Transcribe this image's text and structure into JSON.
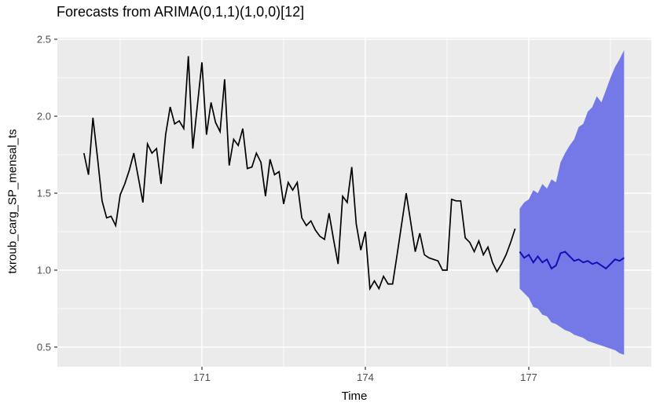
{
  "title": "Forecasts from ARIMA(0,1,1)(1,0,0)[12]",
  "axes": {
    "x": {
      "label": "Time",
      "tick_labels": [
        "171",
        "174",
        "177"
      ],
      "tick_values": [
        171,
        174,
        177
      ],
      "minor_tick_values": [
        169.5,
        172.5,
        175.5,
        178.5
      ],
      "range": [
        168.35,
        179.25
      ]
    },
    "y": {
      "label": "txroub_carg_SP_mensal_ts",
      "tick_labels": [
        "2.5",
        "2.0",
        "1.5",
        "1.0",
        "0.5"
      ],
      "tick_values": [
        2.5,
        2.0,
        1.5,
        1.0,
        0.5
      ],
      "minor_tick_values": [
        2.25,
        1.75,
        1.25,
        0.75
      ],
      "range": [
        0.37,
        2.51
      ]
    }
  },
  "colors": {
    "panel_background": "#ebebeb",
    "major_gridline": "#ffffff",
    "minor_gridline": "#ffffff",
    "observed_line": "#000000",
    "forecast_ribbon": "#7579e8",
    "forecast_line": "#0f0fb4",
    "tick_mark": "#333333",
    "tick_label": "#4d4d4d"
  },
  "chart_data": {
    "type": "line",
    "title": "Forecasts from ARIMA(0,1,1)(1,0,0)[12]",
    "xlabel": "Time",
    "ylabel": "txroub_carg_SP_mensal_ts",
    "xlim": [
      168.35,
      179.25
    ],
    "ylim": [
      0.37,
      2.51
    ],
    "grid": "on",
    "legend": "none",
    "frequency": 12,
    "observed": {
      "name": "txroub_carg_SP_mensal_ts",
      "start_time": 168.8333,
      "values": [
        1.76,
        1.62,
        1.99,
        1.73,
        1.45,
        1.34,
        1.35,
        1.29,
        1.49,
        1.56,
        1.65,
        1.76,
        1.6,
        1.44,
        1.82,
        1.76,
        1.79,
        1.56,
        1.88,
        2.06,
        1.95,
        1.97,
        1.92,
        2.39,
        1.79,
        2.07,
        2.35,
        1.88,
        2.09,
        1.96,
        1.9,
        2.24,
        1.68,
        1.85,
        1.81,
        1.92,
        1.66,
        1.67,
        1.76,
        1.7,
        1.48,
        1.72,
        1.62,
        1.64,
        1.43,
        1.57,
        1.52,
        1.57,
        1.34,
        1.29,
        1.32,
        1.26,
        1.22,
        1.2,
        1.37,
        1.2,
        1.04,
        1.48,
        1.44,
        1.67,
        1.3,
        1.13,
        1.25,
        0.88,
        0.93,
        0.88,
        0.96,
        0.91,
        0.91,
        1.1,
        1.3,
        1.5,
        1.31,
        1.12,
        1.24,
        1.1,
        1.08,
        1.07,
        1.06,
        1.0,
        1.0,
        1.46,
        1.45,
        1.45,
        1.21,
        1.18,
        1.12,
        1.19,
        1.1,
        1.15,
        1.05,
        0.99,
        1.04,
        1.1,
        1.18,
        1.27
      ]
    },
    "forecast": {
      "name": "ARIMA(0,1,1)(1,0,0)[12] forecast",
      "start_time": 176.8333,
      "mean": [
        1.12,
        1.08,
        1.1,
        1.05,
        1.09,
        1.05,
        1.07,
        1.01,
        1.03,
        1.11,
        1.12,
        1.09,
        1.06,
        1.07,
        1.05,
        1.06,
        1.04,
        1.05,
        1.03,
        1.01,
        1.04,
        1.07,
        1.06,
        1.08
      ],
      "lower": [
        0.88,
        0.85,
        0.82,
        0.76,
        0.75,
        0.71,
        0.7,
        0.66,
        0.65,
        0.63,
        0.61,
        0.6,
        0.58,
        0.57,
        0.56,
        0.54,
        0.53,
        0.52,
        0.51,
        0.5,
        0.49,
        0.48,
        0.46,
        0.45
      ],
      "upper": [
        1.4,
        1.44,
        1.46,
        1.52,
        1.5,
        1.56,
        1.53,
        1.59,
        1.57,
        1.7,
        1.76,
        1.81,
        1.85,
        1.93,
        1.95,
        2.03,
        2.06,
        2.13,
        2.09,
        2.17,
        2.25,
        2.32,
        2.37,
        2.43
      ]
    }
  }
}
